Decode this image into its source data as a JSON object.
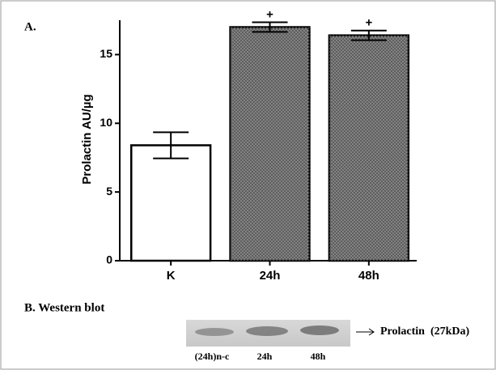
{
  "chart_data": {
    "type": "bar",
    "title": "A.",
    "ylabel": "Prolactin AU/µg",
    "categories": [
      "K",
      "24h",
      "48h"
    ],
    "values": [
      8.4,
      17.0,
      16.4
    ],
    "errors": [
      0.95,
      0.35,
      0.35
    ],
    "colors": [
      "#ffffff",
      "#8c8c8c",
      "#8c8c8c"
    ],
    "annotations": [
      {
        "category": "24h",
        "text": "+"
      },
      {
        "category": "48h",
        "text": "+"
      }
    ],
    "ylim": [
      0,
      17.5
    ],
    "yticks": [
      0,
      5,
      10,
      15
    ],
    "grid": false
  },
  "western_blot": {
    "title": "B. Western blot",
    "lanes": [
      "(24h)n-c",
      "24h",
      "48h"
    ],
    "band_label": "Prolactin  (27kDa)"
  }
}
